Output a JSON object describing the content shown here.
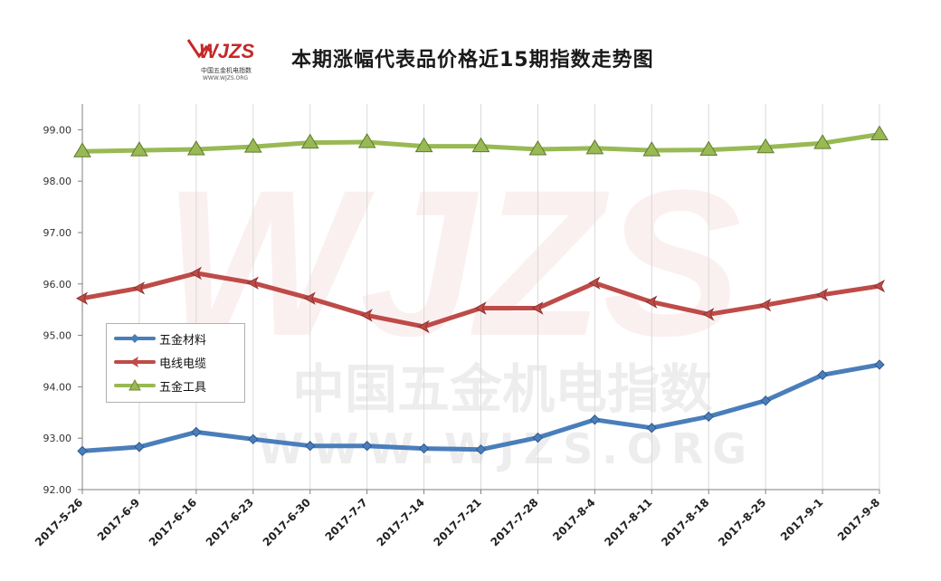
{
  "title": "本期涨幅代表品价格近15期指数走势图",
  "logo": {
    "text": "WJZS",
    "sub_cn": "中国五金机电指数",
    "sub_url": "WWW.WJZS.ORG"
  },
  "watermark": {
    "big": "WJZS",
    "cn": "中国五金机电指数",
    "url": "WWW.WJZS.ORG"
  },
  "chart_data": {
    "type": "line",
    "title": "本期涨幅代表品价格近15期指数走势图",
    "xlabel": "",
    "ylabel": "",
    "ylim": [
      92.0,
      99.5
    ],
    "yticks": [
      "92.00",
      "93.00",
      "94.00",
      "95.00",
      "96.00",
      "97.00",
      "98.00",
      "99.00"
    ],
    "categories": [
      "2017-5-26",
      "2017-6-9",
      "2017-6-16",
      "2017-6-23",
      "2017-6-30",
      "2017-7-7",
      "2017-7-14",
      "2017-7-21",
      "2017-7-28",
      "2017-8-4",
      "2017-8-11",
      "2017-8-18",
      "2017-8-25",
      "2017-9-1",
      "2017-9-8"
    ],
    "grid": "vertical",
    "legend_position": "left-middle",
    "series": [
      {
        "name": "五金材料",
        "color": "#4a7ebb",
        "marker": "diamond",
        "values": [
          92.75,
          92.83,
          93.12,
          92.98,
          92.85,
          92.85,
          92.8,
          92.78,
          93.01,
          93.36,
          93.2,
          93.42,
          93.73,
          94.23,
          94.43
        ]
      },
      {
        "name": "电线电缆",
        "color": "#be4b48",
        "marker": "arrow",
        "values": [
          95.72,
          95.92,
          96.21,
          96.02,
          95.72,
          95.39,
          95.17,
          95.53,
          95.53,
          96.02,
          95.65,
          95.41,
          95.59,
          95.79,
          95.96
        ]
      },
      {
        "name": "五金工具",
        "color": "#98b954",
        "marker": "triangle",
        "values": [
          98.58,
          98.6,
          98.62,
          98.67,
          98.75,
          98.76,
          98.68,
          98.68,
          98.62,
          98.64,
          98.6,
          98.61,
          98.66,
          98.74,
          98.91
        ]
      }
    ]
  }
}
